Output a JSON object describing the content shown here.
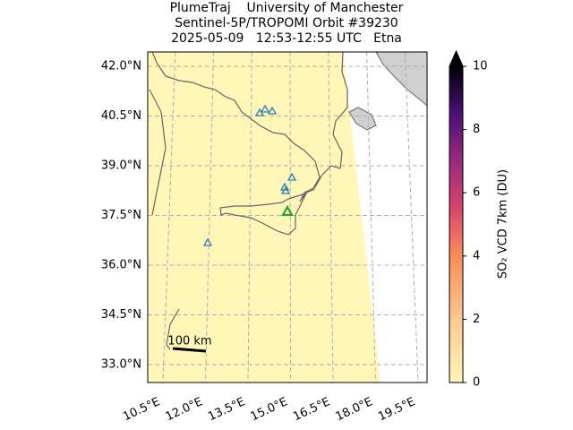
{
  "title": [
    "PlumeTraj    University of Manchester",
    "Sentinel-5P/TROPOMI Orbit #39230",
    "2025-05-09   12:53-12:55 UTC   Etna"
  ],
  "map": {
    "lat_labels": [
      "42.0°N",
      "40.5°N",
      "39.0°N",
      "37.5°N",
      "36.0°N",
      "34.5°N",
      "33.0°N"
    ],
    "lon_labels": [
      "10.5°E",
      "12.0°E",
      "13.5°E",
      "15.0°E",
      "16.5°E",
      "18.0°E",
      "19.5°E"
    ],
    "scale_bar": "100 km"
  },
  "colorbar": {
    "label": "SO₂ VCD 7km (DU)",
    "lim": [
      0,
      10
    ],
    "ticks": [
      0,
      2,
      4,
      6,
      8,
      10
    ]
  }
}
